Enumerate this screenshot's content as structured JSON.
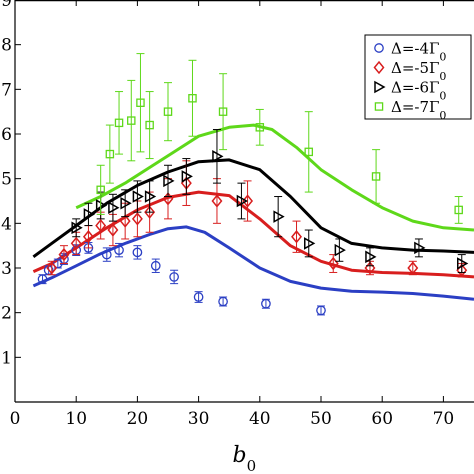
{
  "chart_data": {
    "type": "scatter",
    "xlabel": "b",
    "xlabel_sub": "0",
    "ylabel": "",
    "xlim": [
      0,
      75
    ],
    "ylim": [
      0,
      9
    ],
    "xticks": [
      0,
      10,
      20,
      30,
      40,
      50,
      60,
      70
    ],
    "yticks": [
      1,
      2,
      3,
      4,
      5,
      6,
      7,
      8,
      9
    ],
    "ytick_labels": [
      "1",
      "2",
      "3",
      "4",
      "5",
      "6",
      "7",
      "8",
      "9"
    ],
    "legend_position": "top-right",
    "series": [
      {
        "name": "Δ=-4Γ",
        "name_sub": "0",
        "color": "#2b3fc4",
        "marker": "circle",
        "points": [
          {
            "x": 4.5,
            "y": 2.75,
            "err": 0.1
          },
          {
            "x": 5.5,
            "y": 2.95,
            "err": 0.1
          },
          {
            "x": 7,
            "y": 3.1,
            "err": 0.1
          },
          {
            "x": 8,
            "y": 3.2,
            "err": 0.12
          },
          {
            "x": 10,
            "y": 3.4,
            "err": 0.12
          },
          {
            "x": 12,
            "y": 3.45,
            "err": 0.12
          },
          {
            "x": 15,
            "y": 3.3,
            "err": 0.15
          },
          {
            "x": 17,
            "y": 3.4,
            "err": 0.15
          },
          {
            "x": 20,
            "y": 3.35,
            "err": 0.15
          },
          {
            "x": 23,
            "y": 3.05,
            "err": 0.15
          },
          {
            "x": 26,
            "y": 2.8,
            "err": 0.15
          },
          {
            "x": 30,
            "y": 2.35,
            "err": 0.12
          },
          {
            "x": 34,
            "y": 2.25,
            "err": 0.1
          },
          {
            "x": 41,
            "y": 2.2,
            "err": 0.1
          },
          {
            "x": 50,
            "y": 2.05,
            "err": 0.1
          }
        ],
        "fit": [
          [
            3,
            2.6
          ],
          [
            6,
            2.78
          ],
          [
            10,
            3.05
          ],
          [
            14,
            3.32
          ],
          [
            18,
            3.55
          ],
          [
            22,
            3.75
          ],
          [
            25,
            3.88
          ],
          [
            28,
            3.92
          ],
          [
            31,
            3.8
          ],
          [
            35,
            3.45
          ],
          [
            40,
            3.0
          ],
          [
            45,
            2.7
          ],
          [
            50,
            2.55
          ],
          [
            55,
            2.48
          ],
          [
            60,
            2.46
          ],
          [
            65,
            2.43
          ],
          [
            70,
            2.37
          ],
          [
            75,
            2.3
          ]
        ]
      },
      {
        "name": "Δ=-5Γ",
        "name_sub": "0",
        "color": "#d81e1e",
        "marker": "diamond",
        "points": [
          {
            "x": 6,
            "y": 3.0,
            "err": 0.15
          },
          {
            "x": 8,
            "y": 3.3,
            "err": 0.2
          },
          {
            "x": 10,
            "y": 3.55,
            "err": 0.25
          },
          {
            "x": 12,
            "y": 3.7,
            "err": 0.25
          },
          {
            "x": 14,
            "y": 3.95,
            "err": 0.3
          },
          {
            "x": 16,
            "y": 3.85,
            "err": 0.35
          },
          {
            "x": 18,
            "y": 4.05,
            "err": 0.4
          },
          {
            "x": 20,
            "y": 4.1,
            "err": 0.4
          },
          {
            "x": 22,
            "y": 4.25,
            "err": 0.45
          },
          {
            "x": 25,
            "y": 4.55,
            "err": 0.45
          },
          {
            "x": 28,
            "y": 4.9,
            "err": 0.5
          },
          {
            "x": 33,
            "y": 4.5,
            "err": 0.5
          },
          {
            "x": 38,
            "y": 4.5,
            "err": 0.45
          },
          {
            "x": 46,
            "y": 3.7,
            "err": 0.35
          },
          {
            "x": 52,
            "y": 3.1,
            "err": 0.2
          },
          {
            "x": 58,
            "y": 3.0,
            "err": 0.15
          },
          {
            "x": 65,
            "y": 3.0,
            "err": 0.15
          },
          {
            "x": 73,
            "y": 2.95,
            "err": 0.15
          }
        ],
        "fit": [
          [
            3,
            2.92
          ],
          [
            6,
            3.1
          ],
          [
            10,
            3.45
          ],
          [
            15,
            3.9
          ],
          [
            20,
            4.3
          ],
          [
            25,
            4.58
          ],
          [
            30,
            4.7
          ],
          [
            35,
            4.62
          ],
          [
            40,
            4.1
          ],
          [
            45,
            3.5
          ],
          [
            50,
            3.15
          ],
          [
            55,
            2.95
          ],
          [
            60,
            2.9
          ],
          [
            65,
            2.88
          ],
          [
            70,
            2.85
          ],
          [
            75,
            2.8
          ]
        ]
      },
      {
        "name": "Δ=-6Γ",
        "name_sub": "0",
        "color": "#000000",
        "marker": "triangle-right",
        "points": [
          {
            "x": 10,
            "y": 3.9,
            "err": 0.2
          },
          {
            "x": 12,
            "y": 4.2,
            "err": 0.25
          },
          {
            "x": 14,
            "y": 4.4,
            "err": 0.3
          },
          {
            "x": 16,
            "y": 4.35,
            "err": 0.3
          },
          {
            "x": 18,
            "y": 4.45,
            "err": 0.3
          },
          {
            "x": 20,
            "y": 4.6,
            "err": 0.35
          },
          {
            "x": 22,
            "y": 4.6,
            "err": 0.35
          },
          {
            "x": 25,
            "y": 4.95,
            "err": 0.35
          },
          {
            "x": 28,
            "y": 5.05,
            "err": 0.4
          },
          {
            "x": 33,
            "y": 5.5,
            "err": 0.6
          },
          {
            "x": 37,
            "y": 4.5,
            "err": 0.4
          },
          {
            "x": 43,
            "y": 4.15,
            "err": 0.45
          },
          {
            "x": 48,
            "y": 3.55,
            "err": 0.3
          },
          {
            "x": 53,
            "y": 3.4,
            "err": 0.25
          },
          {
            "x": 58,
            "y": 3.25,
            "err": 0.2
          },
          {
            "x": 66,
            "y": 3.45,
            "err": 0.2
          },
          {
            "x": 73,
            "y": 3.1,
            "err": 0.2
          }
        ],
        "fit": [
          [
            3,
            3.25
          ],
          [
            6,
            3.55
          ],
          [
            10,
            3.95
          ],
          [
            15,
            4.45
          ],
          [
            20,
            4.85
          ],
          [
            25,
            5.15
          ],
          [
            30,
            5.38
          ],
          [
            35,
            5.42
          ],
          [
            40,
            5.2
          ],
          [
            45,
            4.6
          ],
          [
            50,
            3.9
          ],
          [
            55,
            3.55
          ],
          [
            60,
            3.45
          ],
          [
            65,
            3.4
          ],
          [
            70,
            3.38
          ],
          [
            75,
            3.35
          ]
        ]
      },
      {
        "name": "Δ=-7Γ",
        "name_sub": "0",
        "color": "#5ed81a",
        "marker": "square",
        "points": [
          {
            "x": 14,
            "y": 4.75,
            "err": 0.55
          },
          {
            "x": 15.5,
            "y": 5.55,
            "err": 0.65
          },
          {
            "x": 17,
            "y": 6.25,
            "err": 0.7
          },
          {
            "x": 19,
            "y": 6.3,
            "err": 0.9
          },
          {
            "x": 20.5,
            "y": 6.7,
            "err": 1.1
          },
          {
            "x": 22,
            "y": 6.2,
            "err": 0.75
          },
          {
            "x": 25,
            "y": 6.5,
            "err": 0.65
          },
          {
            "x": 29,
            "y": 6.8,
            "err": 0.85
          },
          {
            "x": 34,
            "y": 6.5,
            "err": 0.85
          },
          {
            "x": 40,
            "y": 6.15,
            "err": 0.4
          },
          {
            "x": 48,
            "y": 5.6,
            "err": 0.9
          },
          {
            "x": 59,
            "y": 5.05,
            "err": 0.6
          },
          {
            "x": 72.5,
            "y": 4.3,
            "err": 0.3
          }
        ],
        "fit": [
          [
            10,
            4.35
          ],
          [
            14,
            4.6
          ],
          [
            18,
            4.9
          ],
          [
            22,
            5.25
          ],
          [
            26,
            5.6
          ],
          [
            30,
            5.95
          ],
          [
            35,
            6.15
          ],
          [
            39,
            6.2
          ],
          [
            42,
            6.1
          ],
          [
            46,
            5.7
          ],
          [
            50,
            5.2
          ],
          [
            55,
            4.75
          ],
          [
            60,
            4.35
          ],
          [
            65,
            4.05
          ],
          [
            70,
            3.9
          ],
          [
            75,
            3.85
          ]
        ]
      }
    ]
  }
}
